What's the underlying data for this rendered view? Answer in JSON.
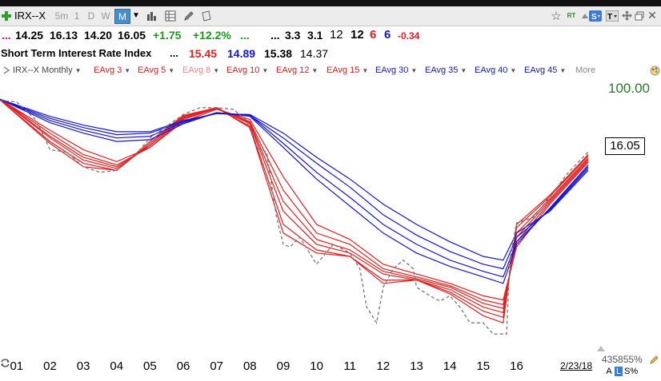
{
  "toolbar": {
    "symbol": "IRX--X",
    "intervals": [
      "5m",
      "1",
      "D",
      "W",
      "M"
    ],
    "active_interval": "M",
    "rt_label": "RT"
  },
  "quote_line": {
    "ellipsis_left": "...",
    "values": [
      "14.25",
      "16.13",
      "14.20",
      "16.05"
    ],
    "change": "+1.75",
    "change_pct": "+12.2%",
    "dots1": "...",
    "dots2": "...",
    "vals2": [
      "3.3",
      "3.1"
    ],
    "plain": "12",
    "bold": "12",
    "red_num": "6",
    "blue_num": "6",
    "neg": "-0.34"
  },
  "name_line": {
    "name": "Short Term Interest Rate Index",
    "dots": "...",
    "red_val": "15.45",
    "blue_val": "14.89",
    "val3": "15.38",
    "val4": "14.37"
  },
  "legend": {
    "symbol_label": "IRX--X Monthly",
    "items": [
      "EAvg 3",
      "EAvg 5",
      "EAvg 8",
      "EAvg 10",
      "EAvg 12",
      "EAvg 15",
      "EAvg 30",
      "EAvg 35",
      "EAvg 40",
      "EAvg 45"
    ],
    "more": "More"
  },
  "axis": {
    "top_value": "100.00",
    "price_box": "16.05",
    "bottom_value": "435855%",
    "date_label": "2/23/18",
    "scale_a": "A",
    "scale_l": "L",
    "scale_s": "S%"
  },
  "colors": {
    "short_term": "#e41e1e",
    "long_term": "#1515d0",
    "price": "#777777",
    "up": "#1a9a1a",
    "toggle_bg": "#3a7bd5"
  },
  "chart_data": {
    "type": "line",
    "title": "Short Term Interest Rate Index",
    "x_labels": [
      "01",
      "02",
      "03",
      "04",
      "05",
      "06",
      "07",
      "08",
      "09",
      "10",
      "11",
      "12",
      "13",
      "14",
      "15",
      "16"
    ],
    "log_scale": true,
    "y_top": "100.00",
    "last_value": 16.05,
    "x_start": 2000.5,
    "x_end": 2018.15,
    "price": {
      "name": "IRX--X",
      "points": [
        [
          2000.5,
          60
        ],
        [
          2001.0,
          58
        ],
        [
          2001.6,
          36
        ],
        [
          2002.0,
          17
        ],
        [
          2002.5,
          16
        ],
        [
          2003.0,
          11
        ],
        [
          2003.5,
          9.5
        ],
        [
          2004.0,
          10
        ],
        [
          2004.5,
          14
        ],
        [
          2005.0,
          23
        ],
        [
          2005.5,
          31
        ],
        [
          2006.0,
          42
        ],
        [
          2006.5,
          50
        ],
        [
          2007.0,
          50
        ],
        [
          2007.5,
          48
        ],
        [
          2007.9,
          36
        ],
        [
          2008.2,
          18
        ],
        [
          2008.5,
          16
        ],
        [
          2008.8,
          3
        ],
        [
          2009.0,
          1.5
        ],
        [
          2009.2,
          1.4
        ],
        [
          2009.5,
          1.8
        ],
        [
          2010.0,
          0.9
        ],
        [
          2010.5,
          1.5
        ],
        [
          2011.0,
          1.2
        ],
        [
          2011.3,
          0.8
        ],
        [
          2011.5,
          0.3
        ],
        [
          2011.8,
          0.2
        ],
        [
          2012.0,
          0.5
        ],
        [
          2012.3,
          0.8
        ],
        [
          2012.6,
          1.0
        ],
        [
          2012.9,
          0.8
        ],
        [
          2013.0,
          0.5
        ],
        [
          2013.4,
          0.4
        ],
        [
          2013.7,
          0.35
        ],
        [
          2014.0,
          0.4
        ],
        [
          2014.3,
          0.3
        ],
        [
          2014.6,
          0.2
        ],
        [
          2015.0,
          0.2
        ],
        [
          2015.3,
          0.15
        ],
        [
          2015.7,
          0.15
        ],
        [
          2015.8,
          1.0
        ],
        [
          2016.0,
          2.6
        ],
        [
          2016.5,
          3.0
        ],
        [
          2017.0,
          5.0
        ],
        [
          2017.5,
          9.0
        ],
        [
          2018.15,
          16.05
        ]
      ]
    },
    "series": [
      {
        "name": "EAvg 3",
        "values": [
          [
            2000.5,
            61
          ],
          [
            2002.0,
            20
          ],
          [
            2003.0,
            11
          ],
          [
            2004.0,
            10
          ],
          [
            2005.0,
            21
          ],
          [
            2006.0,
            41
          ],
          [
            2007.0,
            50
          ],
          [
            2008.0,
            30
          ],
          [
            2009.0,
            2.0
          ],
          [
            2010.0,
            1.2
          ],
          [
            2011.0,
            1.1
          ],
          [
            2012.0,
            0.55
          ],
          [
            2013.0,
            0.6
          ],
          [
            2014.0,
            0.42
          ],
          [
            2015.0,
            0.24
          ],
          [
            2015.6,
            0.2
          ],
          [
            2016.0,
            2.5
          ],
          [
            2017.0,
            5.3
          ],
          [
            2018.15,
            15.0
          ]
        ]
      },
      {
        "name": "EAvg 5",
        "values": [
          [
            2000.5,
            61
          ],
          [
            2002.0,
            21
          ],
          [
            2003.0,
            12
          ],
          [
            2004.0,
            10
          ],
          [
            2005.0,
            20
          ],
          [
            2006.0,
            40
          ],
          [
            2007.0,
            50
          ],
          [
            2008.0,
            31
          ],
          [
            2009.0,
            2.5
          ],
          [
            2010.0,
            1.3
          ],
          [
            2011.0,
            1.1
          ],
          [
            2012.0,
            0.6
          ],
          [
            2013.0,
            0.6
          ],
          [
            2014.0,
            0.44
          ],
          [
            2015.0,
            0.27
          ],
          [
            2015.6,
            0.23
          ],
          [
            2016.0,
            2.3
          ],
          [
            2017.0,
            5.1
          ],
          [
            2018.15,
            14.5
          ]
        ]
      },
      {
        "name": "EAvg 8",
        "values": [
          [
            2000.5,
            62
          ],
          [
            2002.0,
            23
          ],
          [
            2003.0,
            13
          ],
          [
            2004.0,
            10.5
          ],
          [
            2005.0,
            19
          ],
          [
            2006.0,
            39
          ],
          [
            2007.0,
            50
          ],
          [
            2008.0,
            33
          ],
          [
            2009.0,
            3.5
          ],
          [
            2010.0,
            1.5
          ],
          [
            2011.0,
            1.2
          ],
          [
            2012.0,
            0.7
          ],
          [
            2013.0,
            0.6
          ],
          [
            2014.0,
            0.47
          ],
          [
            2015.0,
            0.3
          ],
          [
            2015.6,
            0.26
          ],
          [
            2016.0,
            2.0
          ],
          [
            2017.0,
            4.8
          ],
          [
            2018.15,
            13.8
          ]
        ]
      },
      {
        "name": "EAvg 10",
        "values": [
          [
            2000.5,
            62
          ],
          [
            2002.0,
            24
          ],
          [
            2003.0,
            14
          ],
          [
            2004.0,
            11
          ],
          [
            2005.0,
            19
          ],
          [
            2006.0,
            38
          ],
          [
            2007.0,
            49
          ],
          [
            2008.0,
            34
          ],
          [
            2009.0,
            4.5
          ],
          [
            2010.0,
            1.7
          ],
          [
            2011.0,
            1.3
          ],
          [
            2012.0,
            0.75
          ],
          [
            2013.0,
            0.62
          ],
          [
            2014.0,
            0.5
          ],
          [
            2015.0,
            0.33
          ],
          [
            2015.6,
            0.29
          ],
          [
            2016.0,
            1.8
          ],
          [
            2017.0,
            4.6
          ],
          [
            2018.15,
            13.3
          ]
        ]
      },
      {
        "name": "EAvg 12",
        "values": [
          [
            2000.5,
            62
          ],
          [
            2002.0,
            26
          ],
          [
            2003.0,
            15
          ],
          [
            2004.0,
            11.5
          ],
          [
            2005.0,
            18
          ],
          [
            2006.0,
            37
          ],
          [
            2007.0,
            49
          ],
          [
            2008.0,
            35
          ],
          [
            2009.0,
            6.0
          ],
          [
            2010.0,
            2.0
          ],
          [
            2011.0,
            1.5
          ],
          [
            2012.0,
            0.8
          ],
          [
            2013.0,
            0.65
          ],
          [
            2014.0,
            0.52
          ],
          [
            2015.0,
            0.36
          ],
          [
            2015.6,
            0.32
          ],
          [
            2016.0,
            1.6
          ],
          [
            2017.0,
            4.4
          ],
          [
            2018.15,
            12.8
          ]
        ]
      },
      {
        "name": "EAvg 15",
        "values": [
          [
            2000.5,
            62
          ],
          [
            2002.0,
            28
          ],
          [
            2003.0,
            17
          ],
          [
            2004.0,
            12.5
          ],
          [
            2005.0,
            18
          ],
          [
            2006.0,
            35
          ],
          [
            2007.0,
            48
          ],
          [
            2008.0,
            37
          ],
          [
            2009.0,
            8.5
          ],
          [
            2010.0,
            2.5
          ],
          [
            2011.0,
            1.7
          ],
          [
            2012.0,
            0.9
          ],
          [
            2013.0,
            0.7
          ],
          [
            2014.0,
            0.55
          ],
          [
            2015.0,
            0.4
          ],
          [
            2015.6,
            0.36
          ],
          [
            2016.0,
            1.4
          ],
          [
            2017.0,
            4.2
          ],
          [
            2018.15,
            12.3
          ]
        ]
      },
      {
        "name": "EAvg 30",
        "values": [
          [
            2000.5,
            62
          ],
          [
            2002.0,
            34
          ],
          [
            2003.0,
            26
          ],
          [
            2004.0,
            21
          ],
          [
            2005.0,
            22
          ],
          [
            2006.0,
            33
          ],
          [
            2007.0,
            44
          ],
          [
            2008.0,
            40
          ],
          [
            2009.0,
            18
          ],
          [
            2010.0,
            8.0
          ],
          [
            2011.0,
            4.0
          ],
          [
            2012.0,
            2.0
          ],
          [
            2013.0,
            1.2
          ],
          [
            2014.0,
            0.85
          ],
          [
            2015.0,
            0.65
          ],
          [
            2015.6,
            0.55
          ],
          [
            2016.0,
            1.5
          ],
          [
            2017.0,
            3.8
          ],
          [
            2018.15,
            11.5
          ]
        ]
      },
      {
        "name": "EAvg 35",
        "values": [
          [
            2000.5,
            62
          ],
          [
            2002.0,
            36
          ],
          [
            2003.0,
            28
          ],
          [
            2004.0,
            23
          ],
          [
            2005.0,
            24
          ],
          [
            2006.0,
            34
          ],
          [
            2007.0,
            44
          ],
          [
            2008.0,
            41
          ],
          [
            2009.0,
            20
          ],
          [
            2010.0,
            9.5
          ],
          [
            2011.0,
            5.0
          ],
          [
            2012.0,
            2.5
          ],
          [
            2013.0,
            1.5
          ],
          [
            2014.0,
            1.0
          ],
          [
            2015.0,
            0.75
          ],
          [
            2015.6,
            0.65
          ],
          [
            2016.0,
            1.6
          ],
          [
            2017.0,
            3.7
          ],
          [
            2018.15,
            11.0
          ]
        ]
      },
      {
        "name": "EAvg 40",
        "values": [
          [
            2000.5,
            62
          ],
          [
            2002.0,
            38
          ],
          [
            2003.0,
            30
          ],
          [
            2004.0,
            25
          ],
          [
            2005.0,
            26
          ],
          [
            2006.0,
            35
          ],
          [
            2007.0,
            43
          ],
          [
            2008.0,
            41
          ],
          [
            2009.0,
            23
          ],
          [
            2010.0,
            12
          ],
          [
            2011.0,
            6.5
          ],
          [
            2012.0,
            3.2
          ],
          [
            2013.0,
            1.9
          ],
          [
            2014.0,
            1.25
          ],
          [
            2015.0,
            0.9
          ],
          [
            2015.6,
            0.8
          ],
          [
            2016.0,
            1.8
          ],
          [
            2017.0,
            3.6
          ],
          [
            2018.15,
            10.5
          ]
        ]
      },
      {
        "name": "EAvg 45",
        "values": [
          [
            2000.5,
            62
          ],
          [
            2002.0,
            40
          ],
          [
            2003.0,
            32
          ],
          [
            2004.0,
            27
          ],
          [
            2005.0,
            27
          ],
          [
            2006.0,
            36
          ],
          [
            2007.0,
            43
          ],
          [
            2008.0,
            42
          ],
          [
            2009.0,
            26
          ],
          [
            2010.0,
            14
          ],
          [
            2011.0,
            8.0
          ],
          [
            2012.0,
            4.2
          ],
          [
            2013.0,
            2.5
          ],
          [
            2014.0,
            1.6
          ],
          [
            2015.0,
            1.1
          ],
          [
            2015.6,
            1.0
          ],
          [
            2016.0,
            2.0
          ],
          [
            2017.0,
            3.5
          ],
          [
            2018.15,
            10.0
          ]
        ]
      }
    ]
  }
}
